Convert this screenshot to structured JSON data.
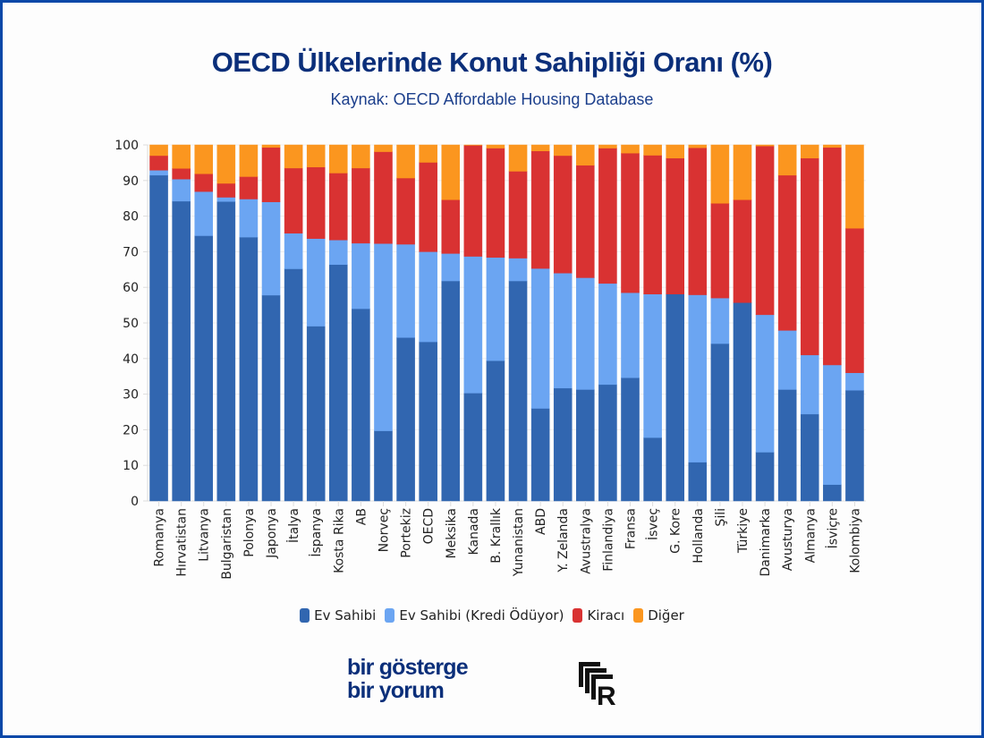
{
  "title": "OECD Ülkelerinde Konut Sahipliği Oranı (%)",
  "subtitle": "Kaynak: OECD Affordable Housing Database",
  "colors": {
    "frame": "#0a48a8",
    "ev_sahibi": "#3166b0",
    "kredi": "#6ba5f2",
    "kiraci": "#d93232",
    "diger": "#fb961f"
  },
  "legend": [
    {
      "label": "Ev Sahibi",
      "color": "#3166b0"
    },
    {
      "label": "Ev Sahibi (Kredi Ödüyor)",
      "color": "#6ba5f2"
    },
    {
      "label": "Kiracı",
      "color": "#d93232"
    },
    {
      "label": "Diğer",
      "color": "#fb961f"
    }
  ],
  "brand": {
    "line1": "bir gösterge",
    "line2": "bir yorum",
    "logo_letter": "R"
  },
  "chart_data": {
    "type": "bar",
    "stacked": true,
    "title": "OECD Ülkelerinde Konut Sahipliği Oranı (%)",
    "subtitle": "Kaynak: OECD Affordable Housing Database",
    "xlabel": "",
    "ylabel": "",
    "ylim": [
      0,
      100
    ],
    "yticks": [
      0,
      10,
      20,
      30,
      40,
      50,
      60,
      70,
      80,
      90,
      100
    ],
    "grid": true,
    "legend_position": "bottom",
    "categories": [
      "Romanya",
      "Hırvatistan",
      "Litvanya",
      "Bulgaristan",
      "Polonya",
      "Japonya",
      "İtalya",
      "İspanya",
      "Kosta Rika",
      "AB",
      "Norveç",
      "Portekiz",
      "OECD",
      "Meksika",
      "Kanada",
      "B. Krallık",
      "Yunanistan",
      "ABD",
      "Y. Zelanda",
      "Avustralya",
      "Finlandiya",
      "Fransa",
      "İsveç",
      "G. Kore",
      "Hollanda",
      "Şili",
      "Türkiye",
      "Danimarka",
      "Avusturya",
      "Almanya",
      "İsviçre",
      "Kolombiya"
    ],
    "series": [
      {
        "name": "Ev Sahibi",
        "values": [
          91.5,
          84.2,
          74.5,
          84.1,
          74.1,
          57.8,
          65.2,
          49.1,
          66.4,
          54.0,
          19.7,
          45.9,
          44.7,
          61.8,
          30.3,
          39.4,
          61.8,
          26.0,
          31.7,
          31.3,
          32.7,
          34.6,
          17.8,
          58.1,
          10.9,
          44.2,
          55.7,
          13.7,
          31.3,
          24.4,
          4.6,
          31.1
        ]
      },
      {
        "name": "Ev Sahibi (Kredi Ödüyor)",
        "values": [
          1.4,
          6.2,
          12.4,
          1.2,
          10.7,
          26.2,
          10.0,
          24.6,
          6.9,
          18.4,
          52.6,
          26.2,
          25.3,
          7.7,
          38.4,
          29.0,
          6.4,
          39.3,
          32.3,
          31.4,
          28.4,
          23.9,
          40.3,
          0.0,
          47.0,
          12.8,
          0.0,
          38.6,
          16.6,
          16.6,
          33.6,
          4.9
        ]
      },
      {
        "name": "Kiracı",
        "values": [
          4.1,
          3.0,
          5.0,
          3.9,
          6.3,
          15.3,
          18.3,
          20.1,
          18.8,
          21.1,
          25.8,
          18.6,
          25.1,
          15.1,
          31.2,
          30.7,
          24.4,
          33.0,
          33.0,
          31.6,
          38.0,
          39.2,
          39.0,
          38.2,
          41.3,
          26.6,
          28.9,
          47.4,
          43.6,
          55.3,
          61.1,
          40.6
        ]
      },
      {
        "name": "Diğer",
        "values": [
          3.0,
          6.6,
          8.1,
          10.8,
          8.9,
          0.7,
          6.5,
          6.2,
          7.9,
          6.5,
          1.9,
          9.3,
          4.9,
          15.4,
          0.1,
          0.9,
          7.4,
          1.7,
          3.0,
          5.7,
          0.9,
          2.3,
          2.9,
          3.7,
          0.8,
          16.4,
          15.4,
          0.3,
          8.5,
          3.7,
          0.7,
          23.4
        ]
      }
    ]
  }
}
